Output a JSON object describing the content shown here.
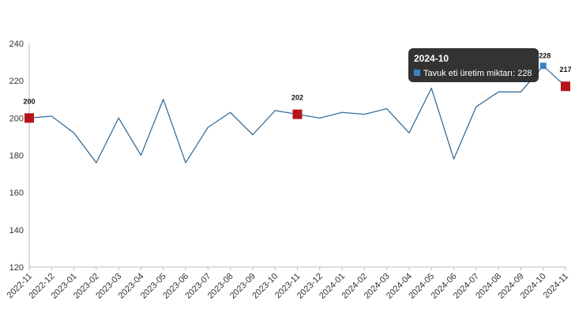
{
  "chart_data": {
    "type": "line",
    "title": "",
    "xlabel": "",
    "ylabel": "",
    "ylim": [
      120,
      240
    ],
    "yticks": [
      120,
      140,
      160,
      180,
      200,
      220,
      240
    ],
    "grid": false,
    "categories": [
      "2022-11",
      "2022-12",
      "2023-01",
      "2023-02",
      "2023-03",
      "2023-04",
      "2023-05",
      "2023-06",
      "2023-07",
      "2023-08",
      "2023-09",
      "2023-10",
      "2023-11",
      "2023-12",
      "2024-01",
      "2024-02",
      "2024-03",
      "2024-04",
      "2024-05",
      "2024-06",
      "2024-07",
      "2024-08",
      "2024-09",
      "2024-10",
      "2024-11"
    ],
    "series": [
      {
        "name": "Tavuk eti üretim miktarı",
        "color": "#3a6f98",
        "values": [
          200,
          201,
          192,
          176,
          200,
          180,
          210,
          176,
          195,
          203,
          191,
          204,
          202,
          200,
          203,
          202,
          205,
          192,
          216,
          178,
          206,
          214,
          214,
          228,
          217
        ]
      }
    ],
    "highlighted_points": [
      {
        "index": 0,
        "label": "200"
      },
      {
        "index": 12,
        "label": "202"
      },
      {
        "index": 24,
        "label": "217"
      }
    ],
    "hovered_point": {
      "index": 23,
      "label": "228"
    },
    "marker_color": "#b5141a",
    "hover_marker_color": "#3b82c4"
  },
  "tooltip": {
    "title": "2024-10",
    "series_label": "Tavuk eti üretim miktarı",
    "text": "Tavuk eti üretim miktarı: 228",
    "swatch_color": "#3b82c4"
  }
}
